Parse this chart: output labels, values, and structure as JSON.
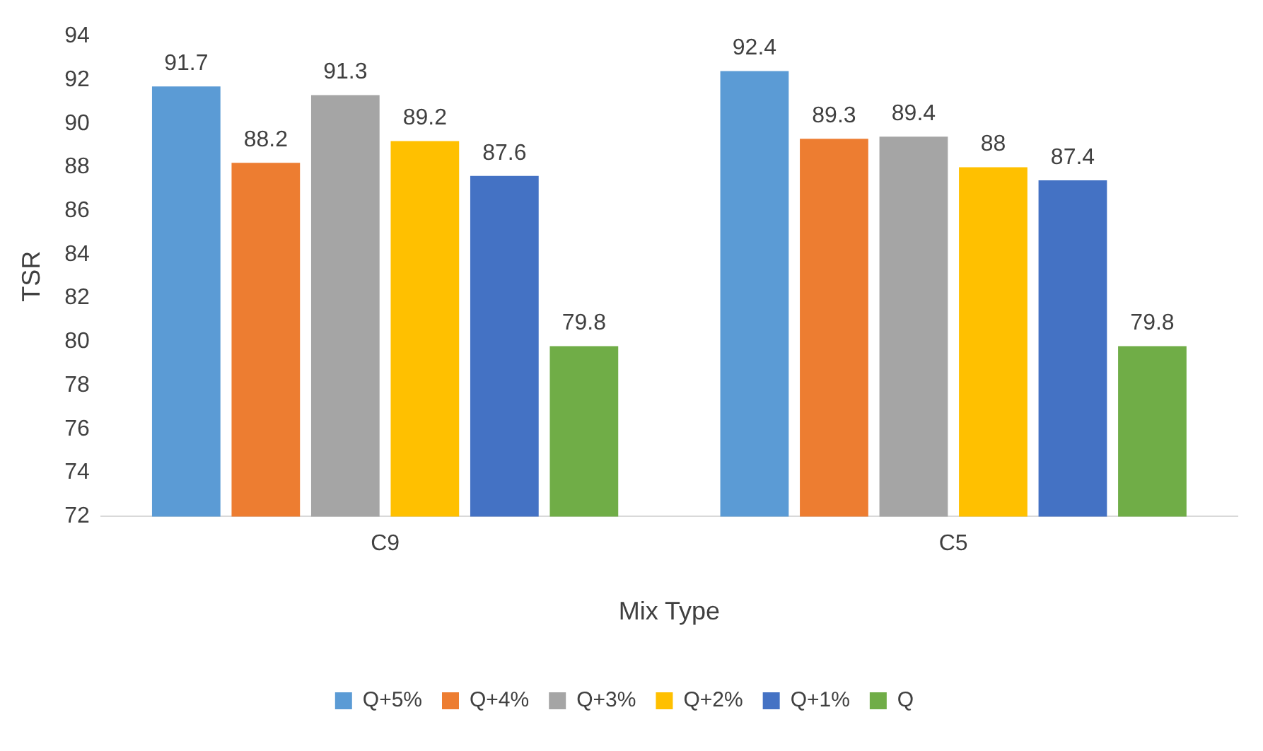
{
  "chart_data": {
    "type": "bar",
    "xlabel": "Mix Type",
    "ylabel": "TSR",
    "categories": [
      "C9",
      "C5"
    ],
    "series": [
      {
        "name": "Q+5%",
        "color": "#5b9bd5",
        "values": [
          91.7,
          92.4
        ]
      },
      {
        "name": "Q+4%",
        "color": "#ed7d31",
        "values": [
          88.2,
          89.3
        ]
      },
      {
        "name": "Q+3%",
        "color": "#a5a5a5",
        "values": [
          91.3,
          89.4
        ]
      },
      {
        "name": "Q+2%",
        "color": "#ffc000",
        "values": [
          89.2,
          88
        ]
      },
      {
        "name": "Q+1%",
        "color": "#4472c4",
        "values": [
          87.6,
          87.4
        ]
      },
      {
        "name": "Q",
        "color": "#70ad47",
        "values": [
          79.8,
          79.8
        ]
      }
    ],
    "ylim": [
      72,
      94
    ],
    "yticks": [
      72,
      74,
      76,
      78,
      80,
      82,
      84,
      86,
      88,
      90,
      92,
      94
    ],
    "grid": false,
    "legend": "bottom",
    "data_labels": true
  }
}
